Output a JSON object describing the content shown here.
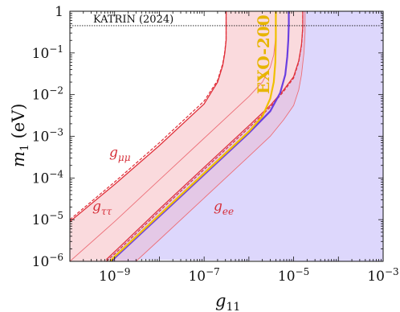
{
  "chart_data": {
    "type": "area",
    "xlabel_main": "g",
    "xlabel_sub": "11",
    "ylabel_main": "m",
    "ylabel_sub": "1",
    "ylabel_unit": " (eV)",
    "x_scale": "log",
    "y_scale": "log",
    "xlim": [
      1e-10,
      0.001
    ],
    "ylim": [
      1e-06,
      1
    ],
    "grid": false,
    "x_ticks": [
      {
        "value": 1e-09,
        "base": "10",
        "exp": "−9"
      },
      {
        "value": 1e-07,
        "base": "10",
        "exp": "−7"
      },
      {
        "value": 1e-05,
        "base": "10",
        "exp": "−5"
      },
      {
        "value": 0.001,
        "base": "10",
        "exp": "−3"
      }
    ],
    "y_ticks": [
      {
        "value": 1,
        "base": "1",
        "exp": ""
      },
      {
        "value": 0.1,
        "base": "10",
        "exp": "−1"
      },
      {
        "value": 0.01,
        "base": "10",
        "exp": "−2"
      },
      {
        "value": 0.001,
        "base": "10",
        "exp": "−3"
      },
      {
        "value": 0.0001,
        "base": "10",
        "exp": "−4"
      },
      {
        "value": 1e-05,
        "base": "10",
        "exp": "−5"
      },
      {
        "value": 1e-06,
        "base": "10",
        "exp": "−6"
      }
    ],
    "katrin": {
      "label": "KATRIN (2024)",
      "m1": 0.45
    },
    "labels": {
      "gmumu": {
        "main": "g",
        "sub": "μμ"
      },
      "gtautau": {
        "main": "g",
        "sub": "ττ"
      },
      "gee": {
        "main": "g",
        "sub": "ee"
      },
      "exo": "EXO-200"
    },
    "colors": {
      "gmumu_fill": "#fadadd",
      "gee_fill": "#ddd7fc",
      "overlap_fill": "#e4c8e6",
      "red_line": "#e0303a",
      "thin_red": "#ec6f78",
      "purple_line": "#6a3fe0",
      "exo_line": "#f0c000",
      "katrin_line": "#111111"
    },
    "series": [
      {
        "id": "gmumu_lower",
        "x": [
          1e-10,
          1e-09,
          1e-08,
          1e-07,
          2e-07,
          2.6e-07,
          2.9e-07,
          3.1e-07,
          3.1e-07
        ],
        "y": [
          9e-06,
          7e-05,
          0.0006,
          0.006,
          0.02,
          0.05,
          0.1,
          0.2,
          1
        ]
      },
      {
        "id": "gmumu_lower_dash",
        "x": [
          1e-10,
          1e-09,
          1e-08,
          1e-07,
          2e-07,
          2.6e-07,
          2.9e-07,
          3.1e-07,
          3.1e-07
        ],
        "y": [
          1e-05,
          8e-05,
          0.0007,
          0.007,
          0.022,
          0.055,
          0.11,
          0.22,
          1
        ]
      },
      {
        "id": "gtautau_mid",
        "x": [
          1e-10,
          1e-09,
          1e-08,
          1e-07,
          1e-06,
          2e-06,
          3e-06,
          3.6e-06,
          3.9e-06,
          4e-06,
          4e-06
        ],
        "y": [
          1e-06,
          9e-06,
          9e-05,
          0.0009,
          0.009,
          0.02,
          0.045,
          0.09,
          0.2,
          0.4,
          1
        ]
      },
      {
        "id": "gee_lower_dash",
        "x": [
          6.5e-10,
          1e-09,
          1e-08,
          1e-07,
          1e-06,
          3e-06,
          6e-06,
          1e-05,
          1.3e-05,
          1.5e-05,
          1.6e-05,
          1.6e-05
        ],
        "y": [
          1e-06,
          1.5e-06,
          1.6e-05,
          0.00016,
          0.0016,
          0.005,
          0.012,
          0.025,
          0.06,
          0.15,
          0.4,
          1
        ]
      },
      {
        "id": "gee_lower_solid",
        "x": [
          6.5e-10,
          1e-09,
          1e-08,
          1e-07,
          1e-06,
          3e-06,
          6e-06,
          1e-05,
          1.3e-05,
          1.5e-05,
          1.6e-05,
          1.6e-05
        ],
        "y": [
          1.1e-06,
          1.7e-06,
          1.8e-05,
          0.00018,
          0.0018,
          0.0055,
          0.013,
          0.027,
          0.065,
          0.16,
          0.42,
          1
        ]
      },
      {
        "id": "gee_thin",
        "x": [
          3e-09,
          1e-08,
          1e-07,
          1e-06,
          3e-06,
          6e-06,
          1e-05,
          1.3e-05,
          1.5e-05,
          1.7e-05,
          1.8e-05,
          1.8e-05
        ],
        "y": [
          1e-06,
          3.3e-06,
          3.3e-05,
          0.00033,
          0.001,
          0.0025,
          0.0055,
          0.013,
          0.03,
          0.1,
          0.3,
          1
        ]
      },
      {
        "id": "purple",
        "x": [
          8.5e-10,
          1e-09,
          1e-08,
          1e-07,
          1e-06,
          3e-06,
          5e-06,
          6.5e-06,
          7.2e-06,
          7.6e-06,
          7.8e-06,
          7.8e-06
        ],
        "y": [
          1e-06,
          1.2e-06,
          1.2e-05,
          0.00012,
          0.0012,
          0.004,
          0.011,
          0.03,
          0.08,
          0.2,
          0.5,
          1
        ]
      },
      {
        "id": "exo",
        "x": [
          8e-10,
          1e-09,
          1e-08,
          1e-07,
          1e-06,
          2e-06,
          3e-06,
          3.6e-06,
          3.9e-06,
          4e-06,
          4e-06
        ],
        "y": [
          1e-06,
          1.3e-06,
          1.3e-05,
          0.00013,
          0.0013,
          0.003,
          0.008,
          0.02,
          0.06,
          0.2,
          1
        ]
      }
    ]
  }
}
